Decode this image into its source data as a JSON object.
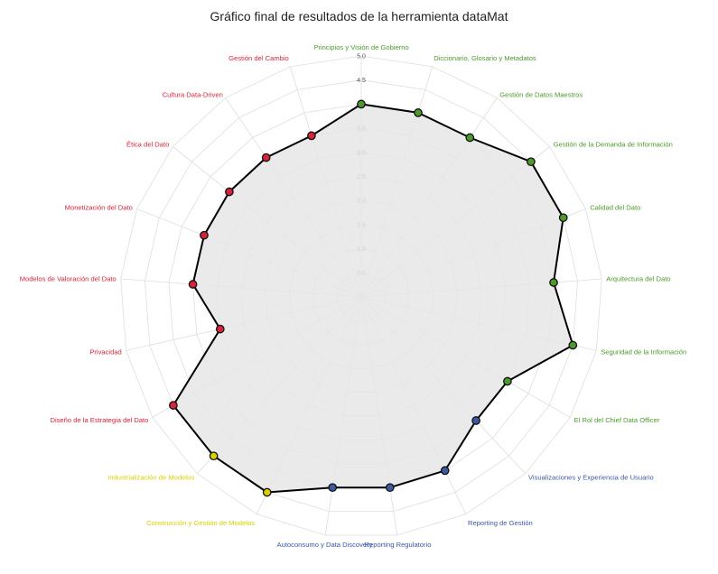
{
  "chart_data": {
    "type": "radar",
    "title": "Gráfico final de resultados de la herramienta dataMat",
    "r_range": [
      0,
      5.0
    ],
    "ticks": [
      "0.5",
      "1.0",
      "1.5",
      "2.0",
      "2.5",
      "3.0",
      "3.5",
      "4.0",
      "4.5",
      "5.0"
    ],
    "tick_values": [
      0.5,
      1.0,
      1.5,
      2.0,
      2.5,
      3.0,
      3.5,
      4.0,
      4.5,
      5.0
    ],
    "grid": true,
    "fill_color": "#e6e6e6",
    "line_color": "#000000",
    "group_colors": {
      "green": "#4c9a2a",
      "blue": "#3b5aa0",
      "yellow": "#d8d000",
      "red": "#d6243a"
    },
    "axes": [
      {
        "label": "Principios y Visión de Gobierno",
        "value": 4.0,
        "group": "green"
      },
      {
        "label": "Diccionario, Glosario y Metadatos",
        "value": 4.0,
        "group": "green"
      },
      {
        "label": "Gestión de Datos Maestros",
        "value": 4.0,
        "group": "green"
      },
      {
        "label": "Gestión de la Demanda de Información",
        "value": 4.5,
        "group": "green"
      },
      {
        "label": "Calidad del Dato",
        "value": 4.5,
        "group": "green"
      },
      {
        "label": "Arquitectura del Dato",
        "value": 4.0,
        "group": "green"
      },
      {
        "label": "Seguridad de la Información",
        "value": 4.5,
        "group": "green"
      },
      {
        "label": "El Rol del Chief Data Officer",
        "value": 3.5,
        "group": "green"
      },
      {
        "label": "Visualizaciones y Experiencia de Usuario",
        "value": 3.5,
        "group": "blue"
      },
      {
        "label": "Reporting de Gestión",
        "value": 4.0,
        "group": "blue"
      },
      {
        "label": "Reporting Regulatorio",
        "value": 4.0,
        "group": "blue"
      },
      {
        "label": "Autoconsumo y Data Discovery",
        "value": 4.0,
        "group": "blue"
      },
      {
        "label": "Construcción y Gestión de Modelos",
        "value": 4.5,
        "group": "yellow"
      },
      {
        "label": "Industrialización de Modelos",
        "value": 4.5,
        "group": "yellow"
      },
      {
        "label": "Diseño de la Estrategia del Dato",
        "value": 4.5,
        "group": "red"
      },
      {
        "label": "Privacidad",
        "value": 3.0,
        "group": "red"
      },
      {
        "label": "Modelos de Valoración del Dato",
        "value": 3.5,
        "group": "red"
      },
      {
        "label": "Monetización del Dato",
        "value": 3.5,
        "group": "red"
      },
      {
        "label": "Ética del Dato",
        "value": 3.5,
        "group": "red"
      },
      {
        "label": "Cultura Data-Driven",
        "value": 3.5,
        "group": "red"
      },
      {
        "label": "Gestión del Cambio",
        "value": 3.5,
        "group": "red"
      }
    ]
  }
}
